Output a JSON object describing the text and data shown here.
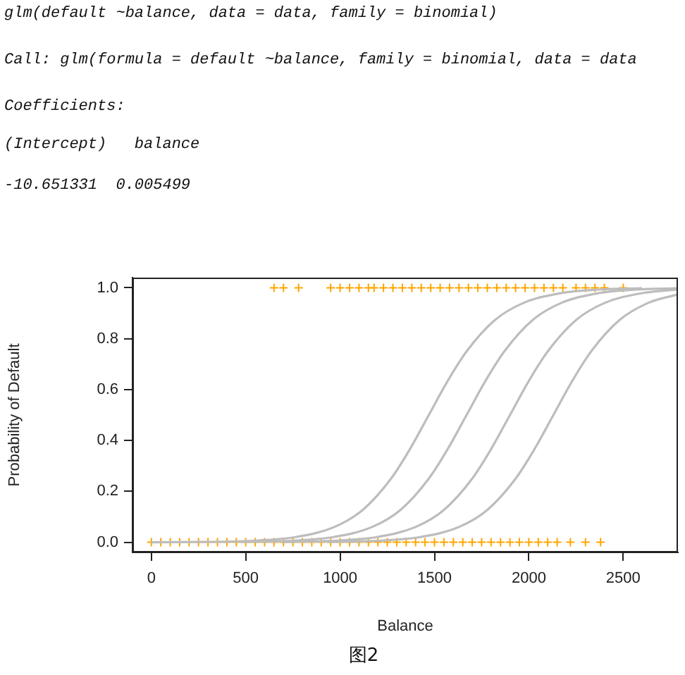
{
  "chart_data": {
    "type": "scatter",
    "xlabel": "Balance",
    "ylabel": "Probability of Default",
    "annotations": [
      "glm(default ~balance, data = data, family = binomial)",
      "Call: glm(formula = default ~balance, family = binomial, data = data",
      "Coefficients:",
      "(Intercept)   balance",
      "-10.651331  0.005499",
      "图2"
    ],
    "xlim": [
      -100,
      2790
    ],
    "ylim": [
      -0.04,
      1.04
    ],
    "xticks": [
      0,
      500,
      1000,
      1500,
      2000,
      2500
    ],
    "yticks": [
      {
        "value": 0,
        "label": "0.0"
      },
      {
        "value": 0.2,
        "label": "0.2"
      },
      {
        "value": 0.4,
        "label": "0.4"
      },
      {
        "value": 0.6,
        "label": "0.6"
      },
      {
        "value": 0.8,
        "label": "0.8"
      },
      {
        "value": 1,
        "label": "1.0"
      }
    ],
    "grid": false,
    "legend": false,
    "series": [
      {
        "type": "scatter",
        "marker": "cross",
        "color": "#ffa500",
        "x": [
          0,
          50,
          100,
          150,
          200,
          250,
          300,
          350,
          400,
          450,
          500,
          550,
          600,
          650,
          700,
          750,
          800,
          850,
          900,
          950,
          1000,
          1050,
          1100,
          1150,
          1200,
          1250,
          1300,
          1350,
          1400,
          1450,
          1500,
          1550,
          1600,
          1650,
          1700,
          1750,
          1800,
          1850,
          1900,
          1950,
          2000,
          2050,
          2100,
          2150,
          2220,
          2300,
          2380
        ],
        "values": [
          0,
          0,
          0,
          0,
          0,
          0,
          0,
          0,
          0,
          0,
          0,
          0,
          0,
          0,
          0,
          0,
          0,
          0,
          0,
          0,
          0,
          0,
          0,
          0,
          0,
          0,
          0,
          0,
          0,
          0,
          0,
          0,
          0,
          0,
          0,
          0,
          0,
          0,
          0,
          0,
          0,
          0,
          0,
          0,
          0,
          0,
          0
        ]
      },
      {
        "type": "scatter",
        "marker": "cross",
        "color": "#ffa500",
        "x": [
          650,
          700,
          780,
          950,
          1000,
          1050,
          1100,
          1150,
          1180,
          1230,
          1280,
          1330,
          1380,
          1430,
          1480,
          1530,
          1580,
          1630,
          1680,
          1730,
          1780,
          1830,
          1880,
          1930,
          1980,
          2030,
          2080,
          2130,
          2180,
          2250,
          2300,
          2350,
          2400,
          2500
        ],
        "values": [
          1,
          1,
          1,
          1,
          1,
          1,
          1,
          1,
          1,
          1,
          1,
          1,
          1,
          1,
          1,
          1,
          1,
          1,
          1,
          1,
          1,
          1,
          1,
          1,
          1,
          1,
          1,
          1,
          1,
          1,
          1,
          1,
          1,
          1
        ]
      },
      {
        "type": "line",
        "marker": "none",
        "color": "#bdbdbd",
        "x": [
          0,
          270,
          570,
          770,
          970,
          1120,
          1270,
          1370,
          1470,
          1570,
          1670,
          1820,
          1970,
          2170,
          2370,
          2600
        ],
        "values": [
          0,
          0.001,
          0.007,
          0.021,
          0.06,
          0.127,
          0.25,
          0.366,
          0.5,
          0.634,
          0.75,
          0.873,
          0.94,
          0.979,
          0.993,
          0.998
        ]
      },
      {
        "type": "line",
        "marker": "none",
        "color": "#bdbdbd",
        "x": [
          470,
          770,
          970,
          1170,
          1320,
          1470,
          1570,
          1670,
          1770,
          1870,
          2020,
          2170,
          2370,
          2570,
          2790
        ],
        "values": [
          0.001,
          0.007,
          0.021,
          0.06,
          0.127,
          0.25,
          0.366,
          0.5,
          0.634,
          0.75,
          0.873,
          0.94,
          0.979,
          0.993,
          0.998
        ]
      },
      {
        "type": "line",
        "marker": "none",
        "color": "#bdbdbd",
        "x": [
          700,
          1000,
          1200,
          1400,
          1550,
          1700,
          1800,
          1900,
          2000,
          2100,
          2250,
          2400,
          2600,
          2790
        ],
        "values": [
          0.001,
          0.007,
          0.021,
          0.06,
          0.127,
          0.25,
          0.366,
          0.5,
          0.634,
          0.75,
          0.873,
          0.94,
          0.979,
          0.993
        ]
      },
      {
        "type": "line",
        "marker": "none",
        "color": "#bdbdbd",
        "x": [
          930,
          1230,
          1430,
          1630,
          1780,
          1930,
          2030,
          2130,
          2230,
          2330,
          2480,
          2630,
          2790
        ],
        "values": [
          0.001,
          0.007,
          0.021,
          0.06,
          0.127,
          0.25,
          0.366,
          0.5,
          0.634,
          0.75,
          0.873,
          0.94,
          0.974
        ]
      }
    ]
  }
}
